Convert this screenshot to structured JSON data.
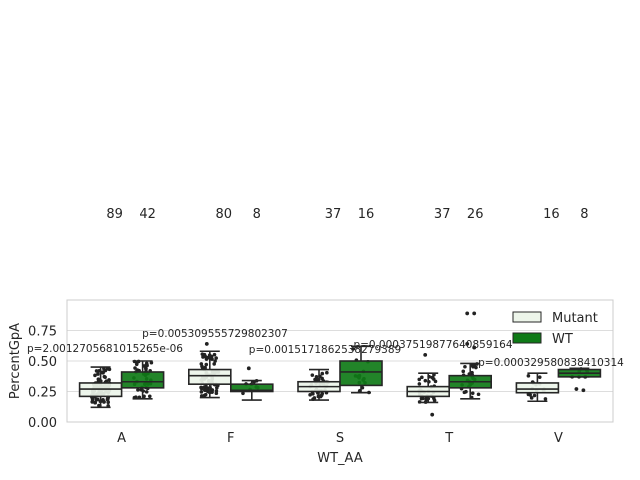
{
  "chart_data": {
    "type": "box",
    "xlabel": "WT_AA",
    "ylabel": "PercentGpA",
    "ylim": [
      0,
      1.0
    ],
    "yticks": [
      "0.00",
      "0.25",
      "0.50",
      "0.75"
    ],
    "ytick_values": [
      0,
      0.25,
      0.5,
      0.75
    ],
    "grid": true,
    "legend_position": "top-right",
    "categories": [
      "A",
      "F",
      "S",
      "T",
      "V"
    ],
    "series": [
      {
        "name": "Mutant",
        "color": "#edf5ea"
      },
      {
        "name": "WT",
        "color": "#0f7a17"
      }
    ],
    "counts": [
      {
        "category": "A",
        "values": [
          "89",
          "42"
        ]
      },
      {
        "category": "F",
        "values": [
          "80",
          "8"
        ]
      },
      {
        "category": "S",
        "values": [
          "37",
          "16"
        ]
      },
      {
        "category": "T",
        "values": [
          "37",
          "26"
        ]
      },
      {
        "category": "V",
        "values": [
          "16",
          "8"
        ]
      }
    ],
    "p_values": [
      {
        "category": "A",
        "text": "p=2.0012705681015265e-06"
      },
      {
        "category": "A",
        "text": "p=0.005309555729802307"
      },
      {
        "category": "F",
        "text": "p=0.0015171862538279389"
      },
      {
        "category": "S",
        "text": "p=0.00037519877640859164"
      },
      {
        "category": "V",
        "text": "p=0.000329580838410314"
      }
    ],
    "boxes": [
      {
        "category": "A",
        "series": "Mutant",
        "whisker_low": 0.12,
        "q1": 0.21,
        "median": 0.27,
        "q3": 0.32,
        "whisker_high": 0.45
      },
      {
        "category": "A",
        "series": "WT",
        "whisker_low": 0.19,
        "q1": 0.28,
        "median": 0.33,
        "q3": 0.41,
        "whisker_high": 0.5
      },
      {
        "category": "F",
        "series": "Mutant",
        "whisker_low": 0.2,
        "q1": 0.31,
        "median": 0.38,
        "q3": 0.43,
        "whisker_high": 0.58
      },
      {
        "category": "F",
        "series": "WT",
        "whisker_low": 0.18,
        "q1": 0.25,
        "median": 0.26,
        "q3": 0.31,
        "whisker_high": 0.34
      },
      {
        "category": "S",
        "series": "Mutant",
        "whisker_low": 0.18,
        "q1": 0.25,
        "median": 0.29,
        "q3": 0.33,
        "whisker_high": 0.43
      },
      {
        "category": "S",
        "series": "WT",
        "whisker_low": 0.24,
        "q1": 0.3,
        "median": 0.41,
        "q3": 0.5,
        "whisker_high": 0.62
      },
      {
        "category": "T",
        "series": "Mutant",
        "whisker_low": 0.16,
        "q1": 0.21,
        "median": 0.25,
        "q3": 0.29,
        "whisker_high": 0.4
      },
      {
        "category": "T",
        "series": "WT",
        "whisker_low": 0.19,
        "q1": 0.28,
        "median": 0.33,
        "q3": 0.38,
        "whisker_high": 0.48
      },
      {
        "category": "V",
        "series": "Mutant",
        "whisker_low": 0.17,
        "q1": 0.24,
        "median": 0.27,
        "q3": 0.32,
        "whisker_high": 0.4
      },
      {
        "category": "V",
        "series": "WT",
        "whisker_low": 0.37,
        "q1": 0.37,
        "median": 0.4,
        "q3": 0.43,
        "whisker_high": 0.44
      }
    ],
    "outliers": [
      {
        "category": "T",
        "series": "Mutant",
        "values": [
          0.55,
          0.06
        ]
      },
      {
        "category": "T",
        "series": "WT",
        "values": [
          0.89,
          0.89,
          0.64,
          0.61
        ]
      },
      {
        "category": "F",
        "series": "WT",
        "values": [
          0.44
        ]
      },
      {
        "category": "V",
        "series": "WT",
        "values": [
          0.27,
          0.26
        ]
      },
      {
        "category": "F",
        "series": "Mutant",
        "values": [
          0.64
        ]
      }
    ]
  }
}
